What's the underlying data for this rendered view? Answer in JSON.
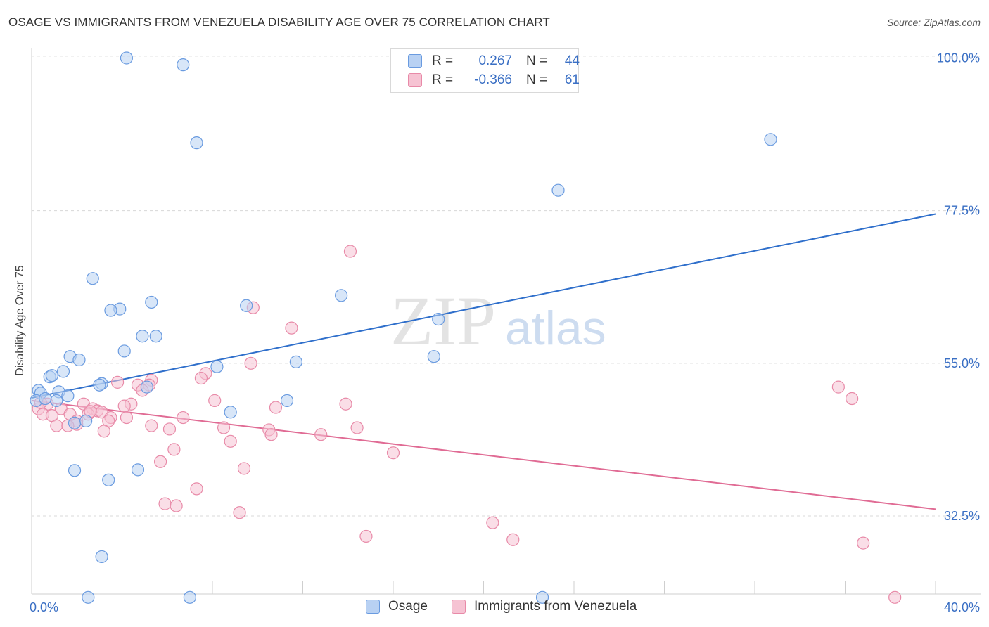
{
  "title": "OSAGE VS IMMIGRANTS FROM VENEZUELA DISABILITY AGE OVER 75 CORRELATION CHART",
  "source": "Source: ZipAtlas.com",
  "watermark": {
    "zip": "ZIP",
    "atlas": "atlas"
  },
  "legend": {
    "r_label": "R =",
    "n_label": "N =",
    "rows": [
      {
        "r": "0.267",
        "n": "44"
      },
      {
        "r": "-0.366",
        "n": "61"
      }
    ]
  },
  "colors": {
    "osage_fill": "#b8d1f3",
    "osage_stroke": "#6a9be0",
    "osage_line": "#2f6fcb",
    "venezuela_fill": "#f6c3d3",
    "venezuela_stroke": "#e88aa8",
    "venezuela_line": "#e06b94",
    "axis_label": "#3a6fc4"
  },
  "chart_data": {
    "type": "scatter",
    "title": "OSAGE VS IMMIGRANTS FROM VENEZUELA DISABILITY AGE OVER 75 CORRELATION CHART",
    "ylabel": "Disability Age Over 75",
    "xlabel": "",
    "xlim": [
      0,
      40
    ],
    "ylim": [
      21,
      101.5
    ],
    "x_tick_labels": [
      "0.0%",
      "40.0%"
    ],
    "y_ticks": [
      32.5,
      55.0,
      77.5,
      100.0
    ],
    "y_tick_labels": [
      "32.5%",
      "55.0%",
      "77.5%",
      "100.0%"
    ],
    "grid": true,
    "legend_position": "top-center",
    "series": [
      {
        "name": "Osage",
        "r": 0.267,
        "n": 44,
        "trend": {
          "x": [
            0,
            40
          ],
          "y": [
            49.9,
            77.0
          ]
        },
        "points": [
          [
            4.2,
            100.0
          ],
          [
            6.7,
            99.0
          ],
          [
            7.3,
            87.5
          ],
          [
            32.7,
            88.0
          ],
          [
            23.3,
            80.5
          ],
          [
            2.7,
            67.5
          ],
          [
            3.9,
            63.0
          ],
          [
            3.5,
            62.8
          ],
          [
            5.3,
            64.0
          ],
          [
            9.5,
            63.5
          ],
          [
            13.7,
            65.0
          ],
          [
            18.0,
            61.5
          ],
          [
            4.9,
            59.0
          ],
          [
            5.5,
            59.0
          ],
          [
            4.1,
            56.8
          ],
          [
            1.7,
            56.0
          ],
          [
            2.1,
            55.5
          ],
          [
            11.7,
            55.2
          ],
          [
            8.2,
            54.5
          ],
          [
            17.8,
            56.0
          ],
          [
            1.4,
            53.8
          ],
          [
            0.8,
            53.0
          ],
          [
            0.9,
            53.2
          ],
          [
            3.1,
            52.0
          ],
          [
            3.0,
            51.8
          ],
          [
            5.1,
            51.5
          ],
          [
            0.3,
            51.0
          ],
          [
            0.4,
            50.6
          ],
          [
            1.2,
            50.8
          ],
          [
            1.6,
            50.2
          ],
          [
            0.2,
            49.5
          ],
          [
            1.1,
            49.5
          ],
          [
            11.3,
            49.5
          ],
          [
            8.8,
            47.8
          ],
          [
            1.9,
            46.2
          ],
          [
            2.4,
            46.5
          ],
          [
            1.9,
            39.2
          ],
          [
            3.4,
            37.8
          ],
          [
            4.7,
            39.3
          ],
          [
            3.1,
            26.5
          ],
          [
            2.5,
            20.5
          ],
          [
            7.0,
            20.5
          ],
          [
            22.6,
            20.5
          ],
          [
            0.6,
            49.8
          ]
        ]
      },
      {
        "name": "Immigrants from Venezuela",
        "r": -0.366,
        "n": 61,
        "trend": {
          "x": [
            0,
            40
          ],
          "y": [
            49.5,
            33.5
          ]
        },
        "points": [
          [
            14.1,
            71.5
          ],
          [
            9.8,
            63.2
          ],
          [
            11.5,
            60.2
          ],
          [
            9.7,
            55.0
          ],
          [
            7.7,
            53.5
          ],
          [
            7.5,
            52.8
          ],
          [
            5.3,
            52.5
          ],
          [
            3.8,
            52.2
          ],
          [
            4.7,
            51.8
          ],
          [
            5.2,
            51.8
          ],
          [
            4.9,
            51.0
          ],
          [
            35.7,
            51.5
          ],
          [
            36.3,
            49.8
          ],
          [
            8.1,
            49.5
          ],
          [
            13.9,
            49.0
          ],
          [
            2.3,
            49.0
          ],
          [
            0.7,
            49.0
          ],
          [
            4.4,
            49.0
          ],
          [
            4.1,
            48.7
          ],
          [
            2.7,
            48.3
          ],
          [
            10.8,
            48.5
          ],
          [
            0.3,
            48.3
          ],
          [
            1.3,
            48.3
          ],
          [
            2.9,
            48.0
          ],
          [
            3.1,
            47.8
          ],
          [
            2.5,
            47.5
          ],
          [
            0.5,
            47.5
          ],
          [
            0.9,
            47.3
          ],
          [
            1.7,
            47.5
          ],
          [
            3.5,
            47.0
          ],
          [
            4.2,
            47.0
          ],
          [
            2.0,
            46.5
          ],
          [
            6.7,
            47.0
          ],
          [
            3.4,
            46.5
          ],
          [
            2.0,
            46.0
          ],
          [
            1.1,
            45.8
          ],
          [
            1.6,
            45.8
          ],
          [
            5.3,
            45.8
          ],
          [
            14.4,
            45.5
          ],
          [
            6.1,
            45.3
          ],
          [
            8.5,
            45.5
          ],
          [
            3.2,
            45.0
          ],
          [
            10.5,
            45.2
          ],
          [
            10.6,
            44.5
          ],
          [
            12.8,
            44.5
          ],
          [
            8.8,
            43.5
          ],
          [
            6.3,
            42.3
          ],
          [
            16.0,
            41.8
          ],
          [
            5.7,
            40.5
          ],
          [
            9.4,
            39.5
          ],
          [
            7.3,
            36.5
          ],
          [
            5.9,
            34.3
          ],
          [
            6.4,
            34.0
          ],
          [
            9.2,
            33.0
          ],
          [
            20.4,
            31.5
          ],
          [
            14.8,
            29.5
          ],
          [
            21.3,
            29.0
          ],
          [
            36.8,
            28.5
          ],
          [
            38.2,
            20.5
          ],
          [
            0.4,
            49.2
          ],
          [
            2.6,
            47.9
          ]
        ]
      }
    ]
  },
  "bottom_legend": {
    "osage": "Osage",
    "venezuela": "Immigrants from Venezuela"
  }
}
